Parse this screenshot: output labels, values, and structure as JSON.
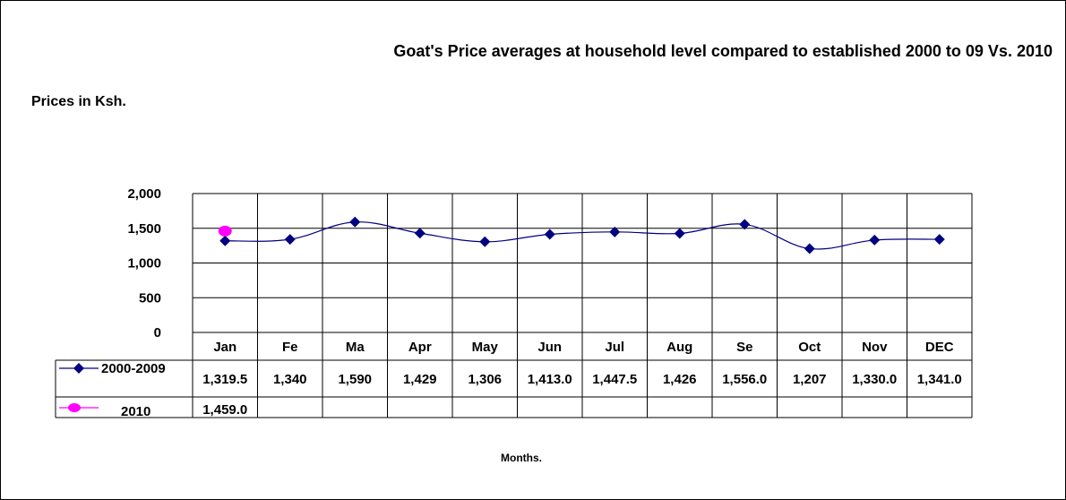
{
  "chart_data": {
    "type": "line",
    "title": "Goat's Price averages at household level compared to established 2000 to 09 Vs. 2010",
    "ylabel": "Prices in Ksh.",
    "xlabel": "Months.",
    "categories": [
      "Jan",
      "Fe",
      "Ma",
      "Apr",
      "May",
      "Jun",
      "Jul",
      "Aug",
      "Se",
      "Oct",
      "Nov",
      "DEC"
    ],
    "ylim": [
      0,
      2000
    ],
    "yticks": [
      0,
      500,
      1000,
      1500,
      2000
    ],
    "ytick_labels": [
      "0",
      "500",
      "1,000",
      "1,500",
      "2,000"
    ],
    "grid": true,
    "legend": "data-table-left",
    "series": [
      {
        "name": "2000-2009",
        "color": "#000080",
        "marker": "diamond",
        "values": [
          1319.5,
          1340,
          1590,
          1429,
          1306,
          1413.0,
          1447.5,
          1426,
          1556.0,
          1207,
          1330.0,
          1341.0
        ],
        "labels": [
          "1,319.5",
          "1,340",
          "1,590",
          "1,429",
          "1,306",
          "1,413.0",
          "1,447.5",
          "1,426",
          "1,556.0",
          "1,207",
          "1,330.0",
          "1,341.0"
        ]
      },
      {
        "name": "2010",
        "color": "#ff00ff",
        "marker": "circle",
        "values": [
          1459.0,
          null,
          null,
          null,
          null,
          null,
          null,
          null,
          null,
          null,
          null,
          null
        ],
        "labels": [
          "1,459.0",
          "",
          "",
          "",
          "",
          "",
          "",
          "",
          "",
          "",
          "",
          ""
        ]
      }
    ]
  }
}
